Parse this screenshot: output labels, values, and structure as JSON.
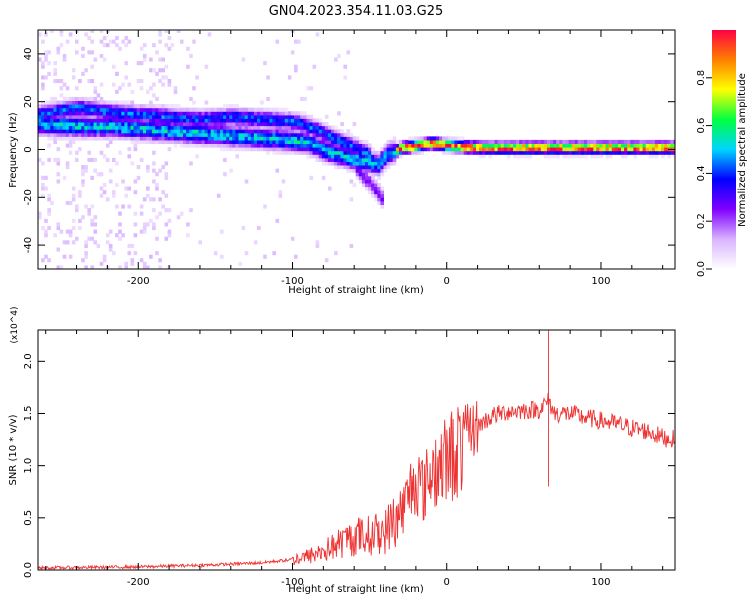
{
  "title": "GN04.2023.354.11.03.G25",
  "colors": {
    "snr_line": "#ee3333",
    "colormap": [
      "#ffffff",
      "#d9b3ff",
      "#8000ff",
      "#0000ff",
      "#00d5ff",
      "#00ff40",
      "#ffff00",
      "#ff8000",
      "#ff0044"
    ]
  },
  "chart_data": [
    {
      "type": "heatmap",
      "title": "GN04.2023.354.11.03.G25",
      "xlabel": "Height of straight line (km)",
      "ylabel": "Frequency (Hz)",
      "xlim": [
        -265,
        148
      ],
      "ylim": [
        -50,
        50
      ],
      "xticks": [
        -200,
        -100,
        0,
        100
      ],
      "yticks": [
        -40,
        -20,
        0,
        20,
        40
      ],
      "colorbar": {
        "label": "Normalized spectral amplitude",
        "range": [
          0,
          1
        ],
        "ticks": [
          "0.0",
          "0.2",
          "0.4",
          "0.6",
          "0.8"
        ]
      },
      "ridges": [
        {
          "x": [
            -265,
            -240,
            -220,
            -200,
            -180,
            -160,
            -140,
            -120,
            -100,
            -90,
            -80,
            -70,
            -60,
            -50,
            -45,
            -40,
            -30,
            -20,
            -10,
            0,
            20,
            50,
            80,
            100,
            148
          ],
          "y": [
            10,
            9,
            9,
            8,
            7,
            6,
            5,
            4,
            3,
            2,
            -1,
            -3,
            -5,
            -6,
            -7,
            -3,
            0,
            1,
            2,
            1,
            0,
            0,
            0,
            0,
            0
          ]
        },
        {
          "x": [
            -265,
            -240,
            -220,
            -200,
            -180,
            -160,
            -140,
            -120,
            -100,
            -90,
            -80,
            -70,
            -60,
            -50
          ],
          "y": [
            14,
            17,
            15,
            14,
            13,
            12,
            13,
            12,
            11,
            9,
            6,
            3,
            0,
            -3
          ]
        },
        {
          "x": [
            -60,
            -55,
            -50,
            -45,
            -42
          ],
          "y": [
            -8,
            -12,
            -15,
            -19,
            -22
          ]
        }
      ]
    },
    {
      "type": "line",
      "xlabel": "Height of straight line (km)",
      "ylabel": "SNR (10 * v/v)",
      "y_multiplier": "(x10^4)",
      "xlim": [
        -265,
        148
      ],
      "ylim": [
        0,
        2.3
      ],
      "xticks": [
        -200,
        -100,
        0,
        100
      ],
      "yticks": [
        "0.0",
        "0.5",
        "1.0",
        "1.5",
        "2.0"
      ],
      "series": [
        {
          "x": [
            -265,
            -200,
            -150,
            -120,
            -100,
            -90,
            -80,
            -70,
            -60,
            -50,
            -40,
            -30,
            -25,
            -20,
            -15,
            -10,
            0,
            10,
            20,
            30,
            40,
            50,
            60,
            66,
            70,
            80,
            90,
            100,
            110,
            120,
            130,
            140,
            148
          ],
          "y": [
            0.02,
            0.03,
            0.05,
            0.07,
            0.1,
            0.13,
            0.18,
            0.25,
            0.32,
            0.33,
            0.37,
            0.55,
            0.75,
            0.95,
            0.8,
            1.0,
            1.1,
            1.28,
            1.38,
            1.48,
            1.52,
            1.53,
            1.54,
            1.62,
            1.5,
            1.5,
            1.46,
            1.43,
            1.4,
            1.36,
            1.33,
            1.27,
            1.25
          ]
        }
      ]
    }
  ]
}
